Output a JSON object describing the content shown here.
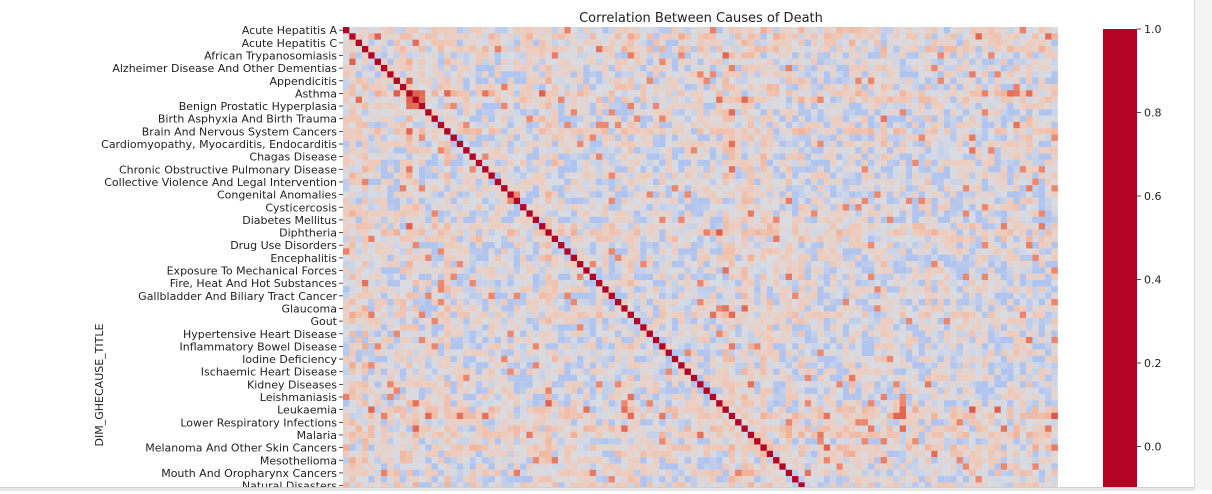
{
  "chart_data": {
    "type": "heatmap",
    "title": "Correlation Between Causes of Death",
    "ylabel": "DIM_GHECAUSE_TITLE",
    "xlabel": "",
    "colormap": "coolwarm",
    "diagonal_value": 1.0,
    "colorbar": {
      "range": [
        -0.1,
        1.0
      ],
      "ticks": [
        "1.0",
        "0.8",
        "0.6",
        "0.4",
        "0.2",
        "0.0"
      ]
    },
    "row_labels": [
      "Acute Hepatitis A",
      "Acute Hepatitis C",
      "African Trypanosomiasis",
      "Alzheimer Disease And Other Dementias",
      "Appendicitis",
      "Asthma",
      "Benign Prostatic Hyperplasia",
      "Birth Asphyxia And Birth Trauma",
      "Brain And Nervous System Cancers",
      "Cardiomyopathy, Myocarditis, Endocarditis",
      "Chagas Disease",
      "Chronic Obstructive Pulmonary Disease",
      "Collective Violence And Legal Intervention",
      "Congenital Anomalies",
      "Cysticercosis",
      "Diabetes Mellitus",
      "Diphtheria",
      "Drug Use Disorders",
      "Encephalitis",
      "Exposure To Mechanical Forces",
      "Fire, Heat And Hot Substances",
      "Gallbladder And Biliary Tract Cancer",
      "Glaucoma",
      "Gout",
      "Hypertensive Heart Disease",
      "Inflammatory Bowel Disease",
      "Iodine Deficiency",
      "Ischaemic Heart Disease",
      "Kidney Diseases",
      "Leishmaniasis",
      "Leukaemia",
      "Lower Respiratory Infections",
      "Malaria",
      "Melanoma And Other Skin Cancers",
      "Mesothelioma",
      "Mouth And Oropharynx Cancers",
      "Natural Disasters"
    ]
  }
}
